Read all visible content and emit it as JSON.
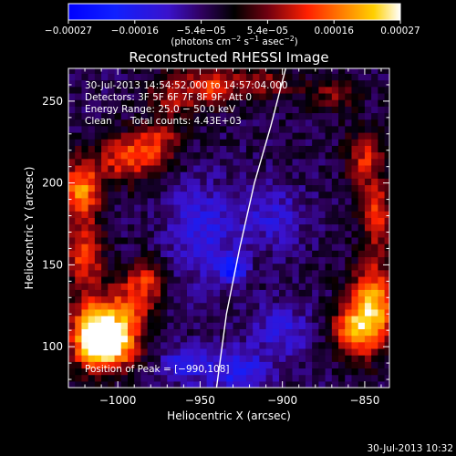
{
  "chart_data": {
    "type": "heatmap",
    "title": "Reconstructed RHESSI Image",
    "xlabel": "Heliocentric X (arcsec)",
    "ylabel": "Heliocentric Y (arcsec)",
    "xlim": [
      -1030,
      -835
    ],
    "ylim": [
      75,
      270
    ],
    "x_ticks": [
      -1000,
      -950,
      -900,
      -850
    ],
    "x_tick_labels": [
      "−1000",
      "−950",
      "−900",
      "−850"
    ],
    "y_ticks": [
      100,
      150,
      200,
      250
    ],
    "y_tick_labels": [
      "100",
      "150",
      "200",
      "250"
    ],
    "colorbar": {
      "range": [
        -0.00027,
        0.00027
      ],
      "tick_labels": [
        "−0.00027",
        "−0.00016",
        "−5.4e−05",
        "5.4e−05",
        "0.00016",
        "0.00027"
      ],
      "unit_prefix": "(photons cm",
      "unit_exp1": "−2",
      "unit_mid": " s",
      "unit_exp2": "−1",
      "unit_mid2": " asec",
      "unit_exp3": "−2",
      "unit_suffix": ")"
    },
    "annotations": {
      "time_range": "30-Jul-2013 14:54:52.000 to 14:57:04.000",
      "detectors": "Detectors: 3F 5F 6F 7F 8F 9F, Att 0",
      "energy": "Energy Range: 25.0 − 50.0 keV",
      "clean": "Clean      Total counts: 4.43E+03",
      "peak": "Position of Peak = [−990,108]"
    },
    "limb_curve": [
      [
        -940,
        75
      ],
      [
        -934,
        120
      ],
      [
        -926,
        160
      ],
      [
        -917,
        200
      ],
      [
        -907,
        235
      ],
      [
        -898,
        270
      ]
    ],
    "blobs": [
      {
        "x": -1015,
        "y": 110,
        "value": 0.00027,
        "sx": 10,
        "sy": 14
      },
      {
        "x": -1005,
        "y": 100,
        "value": 0.00024,
        "sx": 11,
        "sy": 10
      },
      {
        "x": -995,
        "y": 120,
        "value": 0.00016,
        "sx": 10,
        "sy": 14
      },
      {
        "x": -982,
        "y": 140,
        "value": 0.00014,
        "sx": 8,
        "sy": 10
      },
      {
        "x": -1020,
        "y": 155,
        "value": 0.00017,
        "sx": 8,
        "sy": 12
      },
      {
        "x": -1022,
        "y": 195,
        "value": 0.00022,
        "sx": 8,
        "sy": 14
      },
      {
        "x": -995,
        "y": 215,
        "value": 0.00017,
        "sx": 12,
        "sy": 10
      },
      {
        "x": -975,
        "y": 225,
        "value": 0.00013,
        "sx": 10,
        "sy": 10
      },
      {
        "x": -965,
        "y": 255,
        "value": 0.00012,
        "sx": 12,
        "sy": 10
      },
      {
        "x": -940,
        "y": 260,
        "value": 0.00015,
        "sx": 10,
        "sy": 8
      },
      {
        "x": -910,
        "y": 262,
        "value": 0.0001,
        "sx": 12,
        "sy": 8
      },
      {
        "x": -870,
        "y": 255,
        "value": 9e-05,
        "sx": 12,
        "sy": 8
      },
      {
        "x": -845,
        "y": 125,
        "value": 0.00025,
        "sx": 10,
        "sy": 18
      },
      {
        "x": -858,
        "y": 110,
        "value": 0.00018,
        "sx": 9,
        "sy": 10
      },
      {
        "x": -842,
        "y": 180,
        "value": 0.00016,
        "sx": 7,
        "sy": 14
      },
      {
        "x": -850,
        "y": 215,
        "value": 0.00014,
        "sx": 8,
        "sy": 12
      },
      {
        "x": -948,
        "y": 170,
        "value": -0.0001,
        "sx": 16,
        "sy": 22
      },
      {
        "x": -930,
        "y": 148,
        "value": -0.00018,
        "sx": 5,
        "sy": 5
      },
      {
        "x": -928,
        "y": 85,
        "value": -0.00012,
        "sx": 14,
        "sy": 10
      },
      {
        "x": -960,
        "y": 90,
        "value": -0.0001,
        "sx": 10,
        "sy": 8
      },
      {
        "x": -905,
        "y": 180,
        "value": -8e-05,
        "sx": 14,
        "sy": 14
      },
      {
        "x": -900,
        "y": 110,
        "value": -9e-05,
        "sx": 12,
        "sy": 12
      }
    ]
  },
  "footer": {
    "timestamp": "30-Jul-2013 10:32"
  },
  "colors": {
    "background": "#000000",
    "text": "#ffffff"
  }
}
